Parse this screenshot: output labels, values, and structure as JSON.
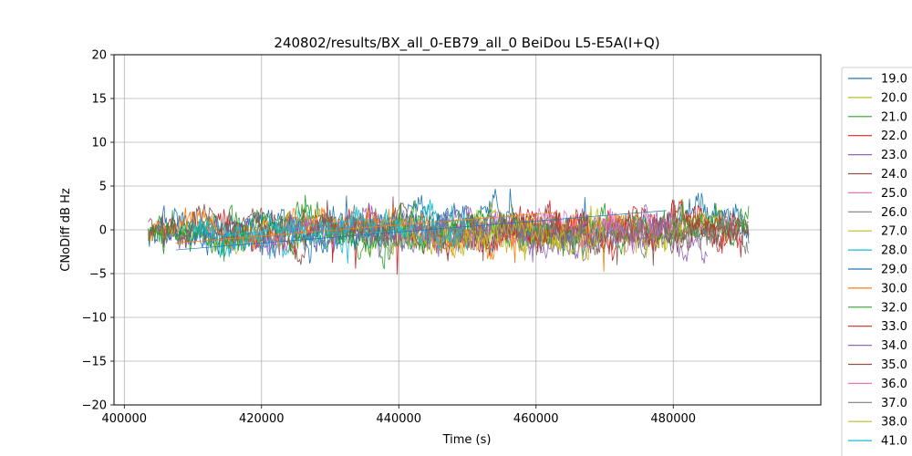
{
  "chart_data": {
    "type": "line",
    "title": "240802/results/BX_all_0-EB79_all_0 BeiDou L5-E5A(I+Q)",
    "xlabel": "Time (s)",
    "ylabel": "CNoDiff dB Hz",
    "xlim": [
      398500,
      501500
    ],
    "ylim": [
      -20,
      20
    ],
    "xticks": [
      400000,
      420000,
      440000,
      460000,
      480000
    ],
    "xtick_labels": [
      "400000",
      "420000",
      "440000",
      "460000",
      "480000"
    ],
    "yticks": [
      -20,
      -15,
      -10,
      -5,
      0,
      5,
      10,
      15,
      20
    ],
    "ytick_labels": [
      "−20",
      "−15",
      "−10",
      "−5",
      "0",
      "5",
      "10",
      "15",
      "20"
    ],
    "grid": true,
    "legend_position": "right, outside plot",
    "series": [
      {
        "name": "19.0",
        "color": "#1f77b4",
        "x_range": [
          403500,
          491000
        ],
        "mean": 0.0,
        "noise": 1.2
      },
      {
        "name": "20.0",
        "color": "#bcbd22",
        "x_range": [
          411000,
          488000
        ],
        "mean": 0.0,
        "noise": 1.0
      },
      {
        "name": "21.0",
        "color": "#2ca02c",
        "x_range": [
          403500,
          491000
        ],
        "mean": 0.0,
        "noise": 1.1
      },
      {
        "name": "22.0",
        "color": "#d62728",
        "x_range": [
          411000,
          490000
        ],
        "mean": 0.0,
        "noise": 1.2
      },
      {
        "name": "23.0",
        "color": "#9467bd",
        "x_range": [
          405000,
          485000
        ],
        "mean": 0.0,
        "noise": 1.0
      },
      {
        "name": "24.0",
        "color": "#8c564b",
        "x_range": [
          403500,
          491000
        ],
        "mean": 0.0,
        "noise": 1.0
      },
      {
        "name": "25.0",
        "color": "#e377c2",
        "x_range": [
          440000,
          478000
        ],
        "mean": 0.0,
        "noise": 0.9
      },
      {
        "name": "26.0",
        "color": "#7f7f7f",
        "x_range": [
          450000,
          491000
        ],
        "mean": 0.0,
        "noise": 1.0
      },
      {
        "name": "27.0",
        "color": "#bcbd22",
        "x_range": [
          445000,
          485000
        ],
        "mean": 0.0,
        "noise": 1.0
      },
      {
        "name": "28.0",
        "color": "#17becf",
        "x_range": [
          410000,
          450000
        ],
        "mean": 0.0,
        "noise": 1.0
      },
      {
        "name": "29.0",
        "color": "#1f77b4",
        "x_range": [
          405000,
          470000
        ],
        "mean": 0.0,
        "noise": 1.1
      },
      {
        "name": "30.0",
        "color": "#ff7f0e",
        "x_range": [
          403500,
          475000
        ],
        "mean": 0.0,
        "noise": 1.2
      },
      {
        "name": "32.0",
        "color": "#2ca02c",
        "x_range": [
          403500,
          491000
        ],
        "mean": 0.0,
        "noise": 1.1
      },
      {
        "name": "33.0",
        "color": "#d62728",
        "x_range": [
          455000,
          490000
        ],
        "mean": 0.0,
        "noise": 1.3
      },
      {
        "name": "34.0",
        "color": "#9467bd",
        "x_range": [
          420000,
          480000
        ],
        "mean": 0.0,
        "noise": 0.9
      },
      {
        "name": "35.0",
        "color": "#8c564b",
        "x_range": [
          403500,
          491000
        ],
        "mean": 0.0,
        "noise": 1.0
      },
      {
        "name": "36.0",
        "color": "#e377c2",
        "x_range": [
          465000,
          480000
        ],
        "mean": 0.0,
        "noise": 0.9
      },
      {
        "name": "37.0",
        "color": "#7f7f7f",
        "x_range": [
          430000,
          491000
        ],
        "mean": 0.0,
        "noise": 1.0
      },
      {
        "name": "38.0",
        "color": "#bcbd22",
        "x_range": [
          440000,
          470000
        ],
        "mean": 0.0,
        "noise": 1.0
      },
      {
        "name": "41.0",
        "color": "#17becf",
        "x_range": [
          410000,
          450000
        ],
        "mean": 0.0,
        "noise": 1.1
      }
    ]
  }
}
